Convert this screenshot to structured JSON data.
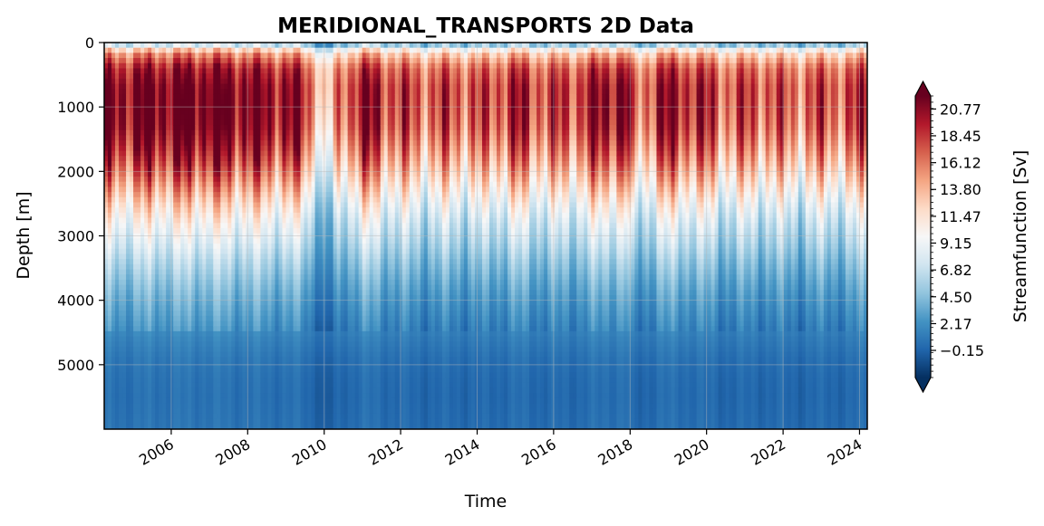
{
  "chart_data": {
    "type": "heatmap",
    "title": "MERIDIONAL_TRANSPORTS 2D Data",
    "xlabel": "Time",
    "ylabel": "Depth [m]",
    "colorbar_label": "Streamfunction [Sv]",
    "colormap": "RdBu_r",
    "colorbar_extend": "both",
    "xlim": [
      "2004-04-01",
      "2024-03-15"
    ],
    "ylim": [
      6000,
      0
    ],
    "y_inverted": true,
    "grid": true,
    "x_ticks": [
      {
        "value": "2006-01-01",
        "label": "2006"
      },
      {
        "value": "2008-01-01",
        "label": "2008"
      },
      {
        "value": "2010-01-01",
        "label": "2010"
      },
      {
        "value": "2012-01-01",
        "label": "2012"
      },
      {
        "value": "2014-01-01",
        "label": "2014"
      },
      {
        "value": "2016-01-01",
        "label": "2016"
      },
      {
        "value": "2018-01-01",
        "label": "2018"
      },
      {
        "value": "2020-01-01",
        "label": "2020"
      },
      {
        "value": "2022-01-01",
        "label": "2022"
      },
      {
        "value": "2024-01-01",
        "label": "2024"
      }
    ],
    "y_ticks": [
      {
        "value": 0,
        "label": "0"
      },
      {
        "value": 1000,
        "label": "1000"
      },
      {
        "value": 2000,
        "label": "2000"
      },
      {
        "value": 3000,
        "label": "3000"
      },
      {
        "value": 4000,
        "label": "4000"
      },
      {
        "value": 5000,
        "label": "5000"
      }
    ],
    "color_range": [
      -2.5,
      21.9
    ],
    "colorbar_ticks": [
      {
        "value": -0.15,
        "label": "−0.15"
      },
      {
        "value": 2.17,
        "label": "2.17"
      },
      {
        "value": 4.5,
        "label": "4.50"
      },
      {
        "value": 6.82,
        "label": "6.82"
      },
      {
        "value": 9.15,
        "label": "9.15"
      },
      {
        "value": 11.47,
        "label": "11.47"
      },
      {
        "value": 13.8,
        "label": "13.80"
      },
      {
        "value": 16.12,
        "label": "16.12"
      },
      {
        "value": 18.45,
        "label": "18.45"
      },
      {
        "value": 20.77,
        "label": "20.77"
      }
    ],
    "depth_profile": {
      "depth": [
        0,
        40,
        150,
        400,
        700,
        1000,
        1300,
        1600,
        1900,
        2200,
        2500,
        2800,
        3100,
        3400,
        3700,
        4000,
        4300,
        4600,
        4900,
        5200,
        5500,
        5800,
        6000
      ],
      "value": [
        1.0,
        6.0,
        13.0,
        17.5,
        19.0,
        19.0,
        18.5,
        17.0,
        15.0,
        12.5,
        10.0,
        8.0,
        6.5,
        5.0,
        3.8,
        2.8,
        2.0,
        1.2,
        0.6,
        0.3,
        0.2,
        0.3,
        0.4
      ]
    },
    "time_anomaly": {
      "date": [
        "2004-04-01",
        "2005-06-01",
        "2006-12-01",
        "2008-03-01",
        "2009-06-01",
        "2009-11-01",
        "2010-01-15",
        "2010-06-01",
        "2011-01-01",
        "2011-08-01",
        "2012-06-01",
        "2013-06-01",
        "2014-03-01",
        "2015-01-01",
        "2015-10-01",
        "2016-08-01",
        "2017-06-01",
        "2017-12-15",
        "2018-02-01",
        "2018-10-01",
        "2019-10-01",
        "2020-06-01",
        "2021-06-01",
        "2022-06-01",
        "2023-03-01",
        "2023-10-01",
        "2024-03-15"
      ],
      "value": [
        1.5,
        2.5,
        3.0,
        2.0,
        1.0,
        -3.0,
        -8.0,
        -2.0,
        1.5,
        0.0,
        -1.5,
        -1.0,
        -1.5,
        0.5,
        -1.0,
        -0.5,
        1.5,
        2.5,
        -4.0,
        1.0,
        0.5,
        -1.5,
        -1.0,
        -2.0,
        -1.0,
        -1.5,
        0.5
      ]
    }
  }
}
